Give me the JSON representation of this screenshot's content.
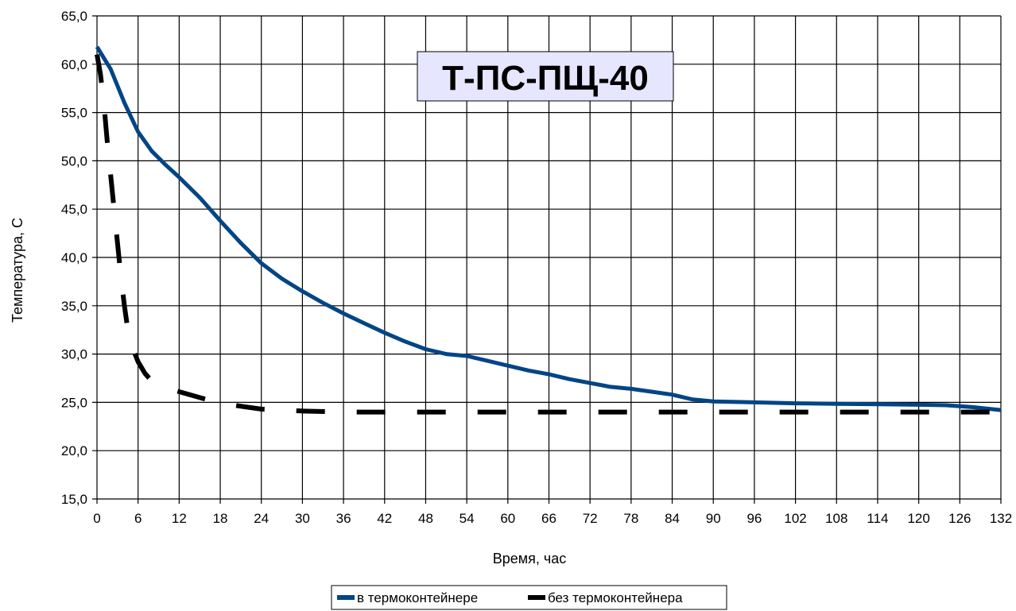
{
  "chart_data": {
    "type": "line",
    "title": "Т-ПС-ПЩ-40",
    "xlabel": "Время, час",
    "ylabel": "Температура, С",
    "xlim": [
      0,
      132
    ],
    "ylim": [
      15,
      65
    ],
    "x_ticks": [
      "0",
      "6",
      "12",
      "18",
      "24",
      "30",
      "36",
      "42",
      "48",
      "54",
      "60",
      "66",
      "72",
      "78",
      "84",
      "90",
      "96",
      "102",
      "108",
      "114",
      "120",
      "126",
      "132"
    ],
    "y_ticks": [
      "15,0",
      "20,0",
      "25,0",
      "30,0",
      "35,0",
      "40,0",
      "45,0",
      "50,0",
      "55,0",
      "60,0",
      "65,0"
    ],
    "grid": true,
    "legend_position": "bottom",
    "series": [
      {
        "name": "в термоконтейнере",
        "color": "#004586",
        "style": "solid",
        "points": [
          [
            0,
            61.8
          ],
          [
            2,
            59.5
          ],
          [
            4,
            56
          ],
          [
            6,
            53
          ],
          [
            8,
            51
          ],
          [
            10,
            49.6
          ],
          [
            12,
            48.3
          ],
          [
            15,
            46.2
          ],
          [
            18,
            43.8
          ],
          [
            21,
            41.5
          ],
          [
            24,
            39.4
          ],
          [
            27,
            37.8
          ],
          [
            30,
            36.5
          ],
          [
            33,
            35.3
          ],
          [
            36,
            34.2
          ],
          [
            39,
            33.2
          ],
          [
            42,
            32.2
          ],
          [
            45,
            31.3
          ],
          [
            48,
            30.5
          ],
          [
            51,
            30
          ],
          [
            54,
            29.8
          ],
          [
            57,
            29.3
          ],
          [
            60,
            28.8
          ],
          [
            63,
            28.3
          ],
          [
            66,
            27.9
          ],
          [
            69,
            27.4
          ],
          [
            72,
            27
          ],
          [
            75,
            26.6
          ],
          [
            78,
            26.4
          ],
          [
            81,
            26.1
          ],
          [
            84,
            25.8
          ],
          [
            87,
            25.3
          ],
          [
            90,
            25.1
          ],
          [
            96,
            25
          ],
          [
            102,
            24.9
          ],
          [
            108,
            24.85
          ],
          [
            114,
            24.8
          ],
          [
            120,
            24.75
          ],
          [
            124,
            24.7
          ],
          [
            128,
            24.5
          ],
          [
            132,
            24.2
          ]
        ]
      },
      {
        "name": "без термоконтейнера",
        "color": "#000000",
        "style": "dashed",
        "points": [
          [
            0,
            61
          ],
          [
            0.5,
            59
          ],
          [
            1,
            56
          ],
          [
            1.5,
            52
          ],
          [
            2,
            48.5
          ],
          [
            2.5,
            45
          ],
          [
            3,
            41.5
          ],
          [
            3.5,
            38
          ],
          [
            4,
            35
          ],
          [
            4.5,
            32.5
          ],
          [
            5,
            31
          ],
          [
            6,
            29.2
          ],
          [
            7,
            28
          ],
          [
            8,
            27.2
          ],
          [
            10,
            26.5
          ],
          [
            12,
            26.1
          ],
          [
            14,
            25.7
          ],
          [
            16,
            25.3
          ],
          [
            18,
            25
          ],
          [
            20,
            24.7
          ],
          [
            22,
            24.5
          ],
          [
            24,
            24.3
          ],
          [
            27,
            24.2
          ],
          [
            30,
            24.1
          ],
          [
            36,
            24
          ],
          [
            48,
            24
          ],
          [
            60,
            24
          ],
          [
            72,
            24
          ],
          [
            84,
            24
          ],
          [
            96,
            24
          ],
          [
            108,
            24
          ],
          [
            120,
            24
          ],
          [
            132,
            24
          ]
        ]
      }
    ]
  }
}
